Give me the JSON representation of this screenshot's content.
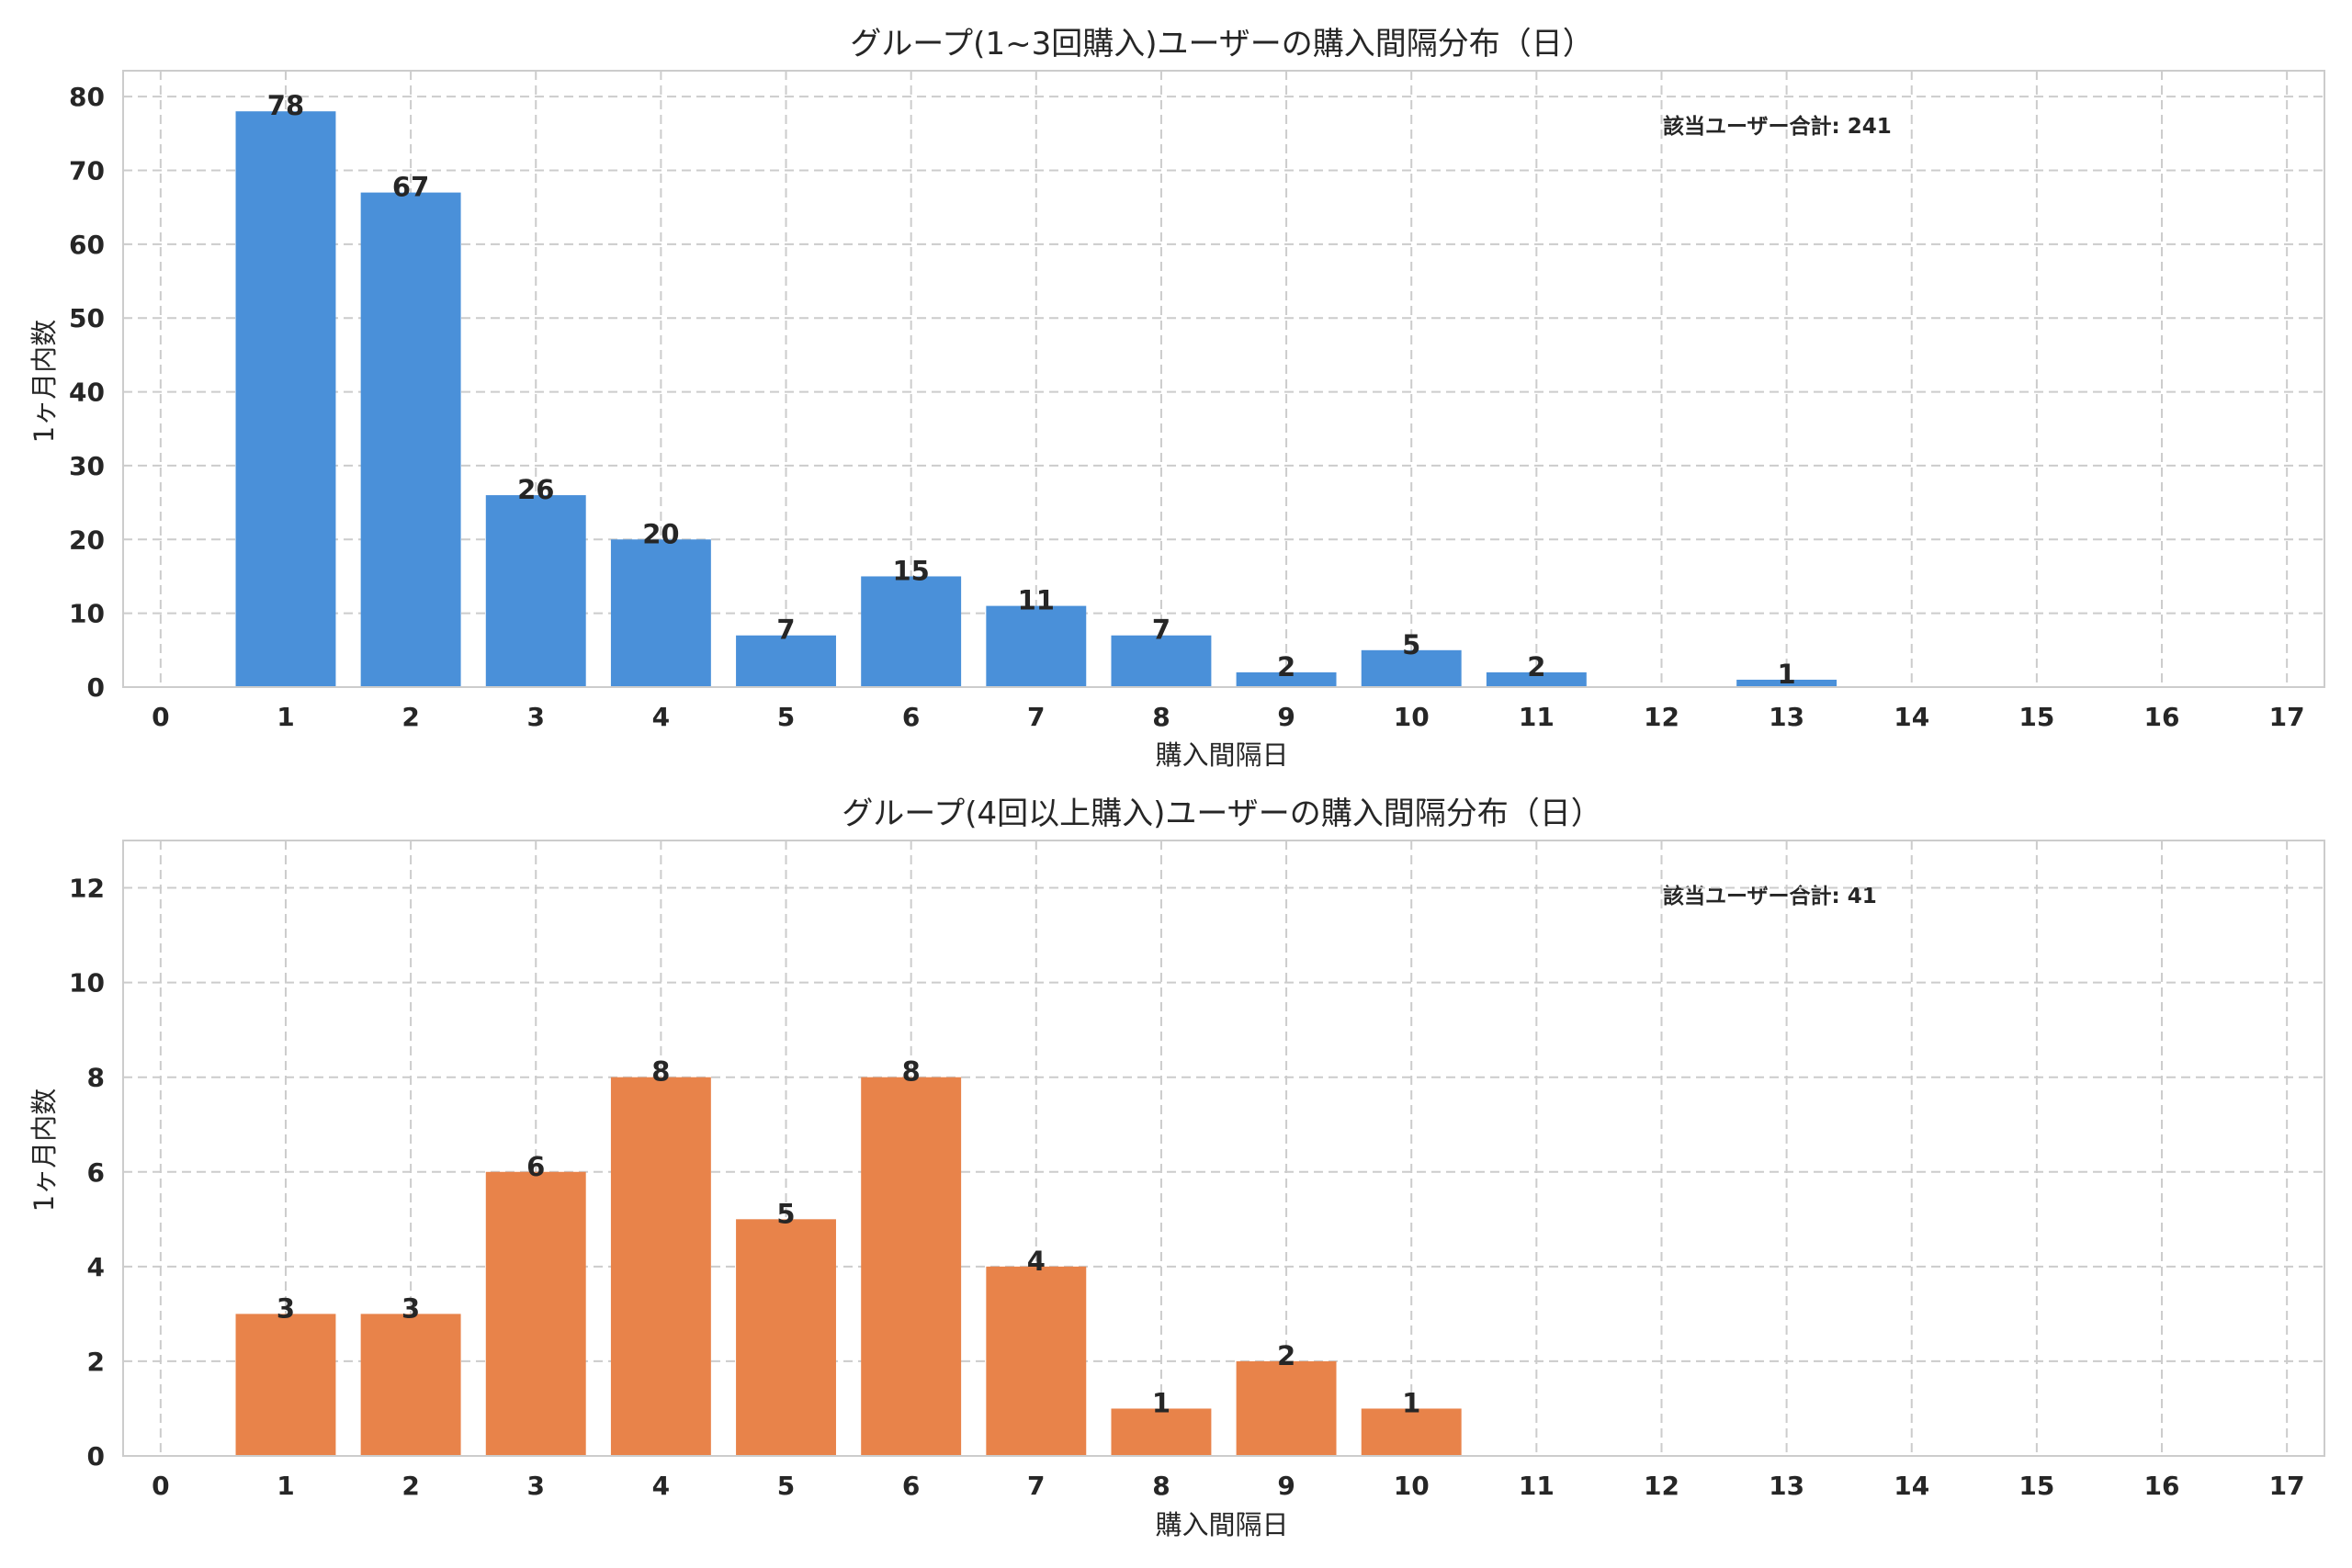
{
  "colors": {
    "chart1_bar": "#4a90d9",
    "chart2_bar": "#e8834a",
    "grid": "#cccccc",
    "text": "#262626"
  },
  "chart_data": [
    {
      "type": "bar",
      "title": "グループ(1~3回購入)ユーザーの購入間隔分布（日）",
      "xlabel": "購入間隔日",
      "ylabel": "1ヶ月内数",
      "x": [
        1,
        2,
        3,
        4,
        5,
        6,
        7,
        8,
        9,
        10,
        11,
        13
      ],
      "values": [
        78,
        67,
        26,
        20,
        7,
        15,
        11,
        7,
        2,
        5,
        2,
        1
      ],
      "xlim": [
        0,
        17
      ],
      "ylim": [
        0,
        80
      ],
      "xticks": [
        0,
        1,
        2,
        3,
        4,
        5,
        6,
        7,
        8,
        9,
        10,
        11,
        12,
        13,
        14,
        15,
        16,
        17
      ],
      "yticks": [
        0,
        10,
        20,
        30,
        40,
        50,
        60,
        70,
        80
      ],
      "grid": true,
      "annotation": "該当ユーザー合計: 241"
    },
    {
      "type": "bar",
      "title": "グループ(4回以上購入)ユーザーの購入間隔分布（日）",
      "xlabel": "購入間隔日",
      "ylabel": "1ヶ月内数",
      "x": [
        1,
        2,
        3,
        4,
        5,
        6,
        7,
        8,
        9,
        10
      ],
      "values": [
        3,
        3,
        6,
        8,
        5,
        8,
        4,
        1,
        2,
        1
      ],
      "xlim": [
        0,
        17
      ],
      "ylim": [
        0,
        12
      ],
      "xticks": [
        0,
        1,
        2,
        3,
        4,
        5,
        6,
        7,
        8,
        9,
        10,
        11,
        12,
        13,
        14,
        15,
        16,
        17
      ],
      "yticks": [
        0,
        2,
        4,
        6,
        8,
        10,
        12
      ],
      "grid": true,
      "annotation": "該当ユーザー合計: 41"
    }
  ]
}
